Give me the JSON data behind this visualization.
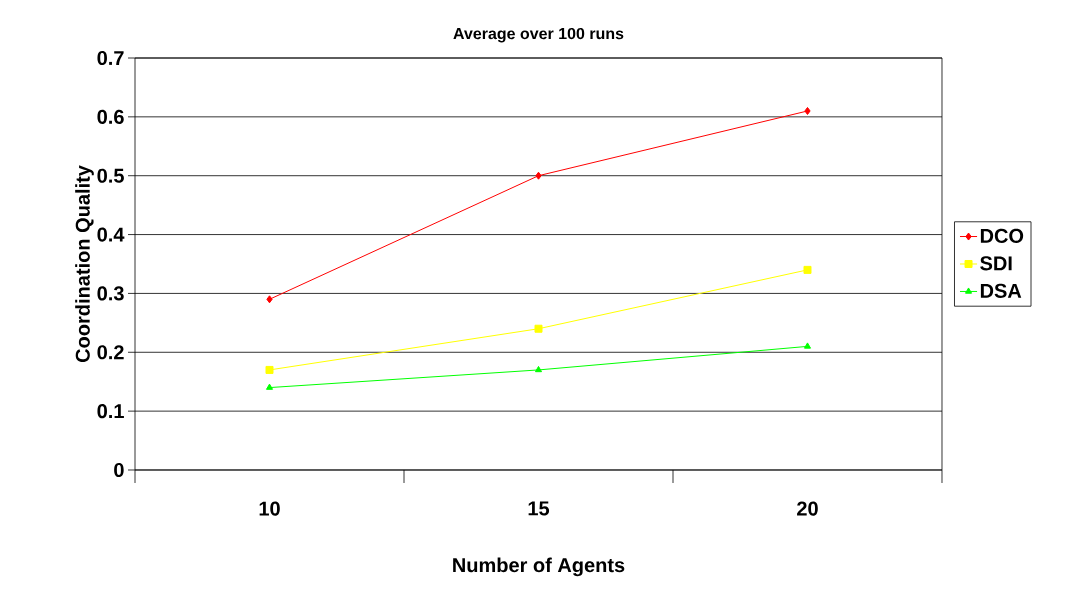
{
  "chart_data": {
    "type": "line",
    "title": "Average over 100 runs",
    "xlabel": "Number of Agents",
    "ylabel": "Coordination Quality",
    "categories": [
      "10",
      "15",
      "20"
    ],
    "series": [
      {
        "name": "DCO",
        "color": "#ff0000",
        "marker": "diamond",
        "values": [
          0.29,
          0.5,
          0.61
        ]
      },
      {
        "name": "SDI",
        "color": "#ffff00",
        "marker": "square",
        "values": [
          0.17,
          0.24,
          0.34
        ]
      },
      {
        "name": "DSA",
        "color": "#00ff00",
        "marker": "triangle",
        "values": [
          0.14,
          0.17,
          0.21
        ]
      }
    ],
    "ylim": [
      0,
      0.7
    ],
    "yticks": [
      0,
      0.1,
      0.2,
      0.3,
      0.4,
      0.5,
      0.6,
      0.7
    ],
    "grid": "y",
    "legend": "right",
    "line_style": "solid"
  }
}
